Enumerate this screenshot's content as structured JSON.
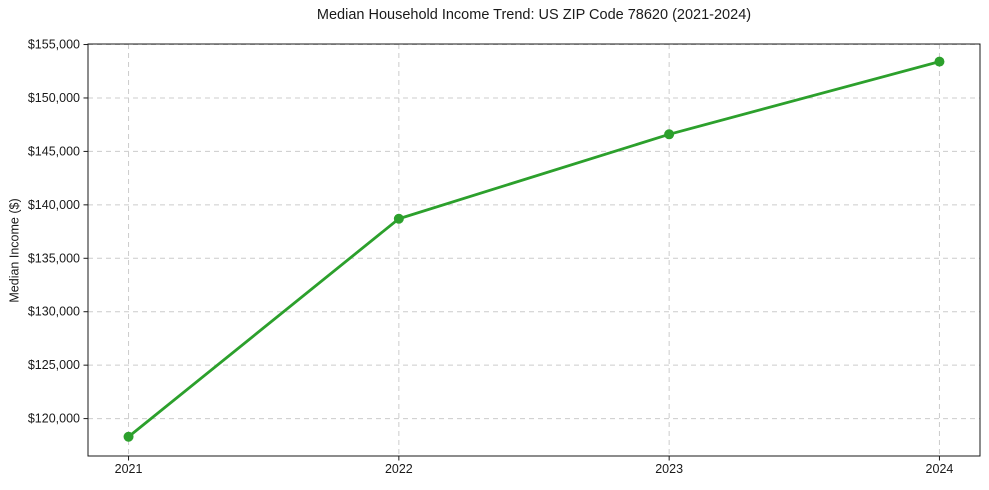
{
  "chart_data": {
    "type": "line",
    "title": "Median Household Income Trend: US ZIP Code 78620 (2021-2024)",
    "xlabel": "",
    "ylabel": "Median Income ($)",
    "x": [
      2021,
      2022,
      2023,
      2024
    ],
    "values": [
      118300,
      138700,
      146600,
      153400
    ],
    "series_name": "Median Household Income",
    "xlim": [
      2020.85,
      2024.15
    ],
    "ylim": [
      116500,
      155050
    ],
    "xticks": [
      2021,
      2022,
      2023,
      2024
    ],
    "xtick_labels": [
      "2021",
      "2022",
      "2023",
      "2024"
    ],
    "yticks": [
      120000,
      125000,
      130000,
      135000,
      140000,
      145000,
      150000,
      155000
    ],
    "ytick_labels": [
      "$120,000",
      "$125,000",
      "$130,000",
      "$135,000",
      "$140,000",
      "$145,000",
      "$150,000",
      "$155,000"
    ],
    "grid": "dashed, both axes",
    "legend": "none",
    "colors": {
      "line": "#2ca02c",
      "marker": "#2ca02c",
      "grid": "#cccccc",
      "axis": "#1a1a1a",
      "text": "#1a1a1a",
      "background": "#ffffff"
    }
  }
}
